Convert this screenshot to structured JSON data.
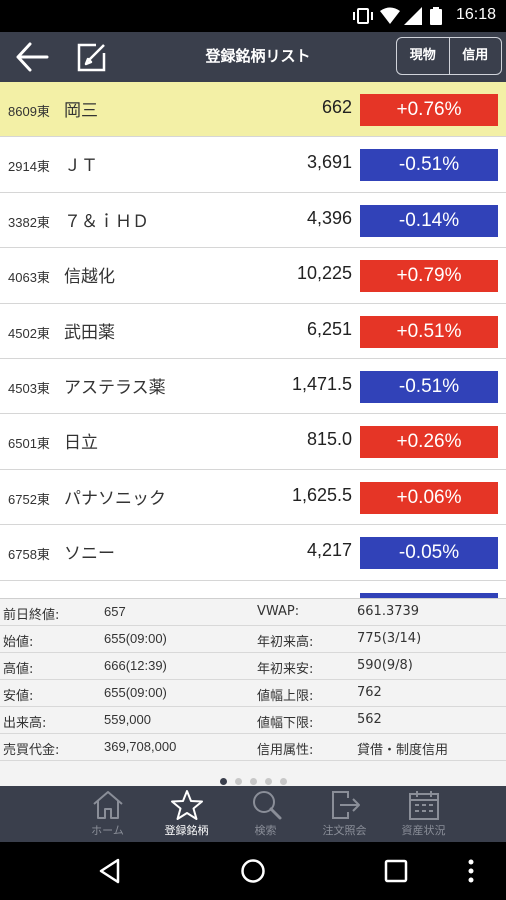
{
  "status_bar": {
    "time": "16:18",
    "icons": [
      "vibrate-icon",
      "wifi-icon",
      "signal-icon",
      "battery-icon"
    ]
  },
  "app_bar": {
    "title": "登録銘柄リスト",
    "back_icon": "back-arrow-icon",
    "edit_icon": "edit-icon",
    "segments": [
      "現物",
      "信用"
    ]
  },
  "stocks": [
    {
      "code": "8609東",
      "name": "岡三",
      "price": "662",
      "change": "+0.76%",
      "dir": "up",
      "selected": true
    },
    {
      "code": "2914東",
      "name": "ＪＴ",
      "price": "3,691",
      "change": "-0.51%",
      "dir": "down",
      "selected": false
    },
    {
      "code": "3382東",
      "name": "７＆ｉＨＤ",
      "price": "4,396",
      "change": "-0.14%",
      "dir": "down",
      "selected": false
    },
    {
      "code": "4063東",
      "name": "信越化",
      "price": "10,225",
      "change": "+0.79%",
      "dir": "up",
      "selected": false
    },
    {
      "code": "4502東",
      "name": "武田薬",
      "price": "6,251",
      "change": "+0.51%",
      "dir": "up",
      "selected": false
    },
    {
      "code": "4503東",
      "name": "アステラス薬",
      "price": "1,471.5",
      "change": "-0.51%",
      "dir": "down",
      "selected": false
    },
    {
      "code": "6501東",
      "name": "日立",
      "price": "815.0",
      "change": "+0.26%",
      "dir": "up",
      "selected": false
    },
    {
      "code": "6752東",
      "name": "パナソニック",
      "price": "1,625.5",
      "change": "+0.06%",
      "dir": "up",
      "selected": false
    },
    {
      "code": "6758東",
      "name": "ソニー",
      "price": "4,217",
      "change": "-0.05%",
      "dir": "down",
      "selected": false
    },
    {
      "code": "",
      "name": "",
      "price": "",
      "change": "",
      "dir": "down",
      "selected": false
    }
  ],
  "detail": [
    {
      "label1": "前日終値:",
      "value1": "657",
      "label2": "VWAP:",
      "value2": "661.3739"
    },
    {
      "label1": "始値:",
      "value1": "655(09:00)",
      "label2": "年初来高:",
      "value2": "775(3/14)"
    },
    {
      "label1": "高値:",
      "value1": "666(12:39)",
      "label2": "年初来安:",
      "value2": "590(9/8)"
    },
    {
      "label1": "安値:",
      "value1": "655(09:00)",
      "label2": "値幅上限:",
      "value2": "762"
    },
    {
      "label1": "出来高:",
      "value1": "559,000",
      "label2": "値幅下限:",
      "value2": "562"
    },
    {
      "label1": "売買代金:",
      "value1": "369,708,000",
      "label2": "信用属性:",
      "value2": "貸借・制度信用"
    }
  ],
  "page_dots": {
    "count": 5,
    "active": 0
  },
  "tabs": [
    {
      "label": "ホーム",
      "icon": "home-icon",
      "active": false
    },
    {
      "label": "登録銘柄",
      "icon": "star-icon",
      "active": true
    },
    {
      "label": "検索",
      "icon": "search-icon",
      "active": false
    },
    {
      "label": "注文照会",
      "icon": "order-inquiry-icon",
      "active": false
    },
    {
      "label": "資産状況",
      "icon": "calendar-icon",
      "active": false
    }
  ],
  "nav_bar": [
    "nav-back-icon",
    "nav-home-icon",
    "nav-recents-icon"
  ],
  "colors": {
    "up": "#e53526",
    "down": "#3142b8",
    "header": "#3a3f4c",
    "selected_row": "#f3f0a6"
  }
}
